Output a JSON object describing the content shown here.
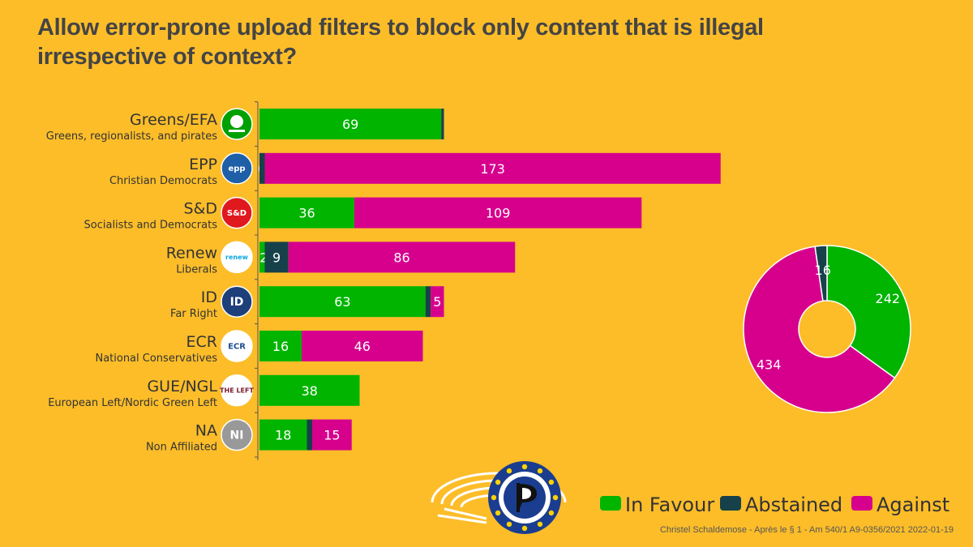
{
  "title": "Allow error-prone upload filters to block only content that is illegal irrespective of context?",
  "footer": "Christel Schaldemose - Après le § 1 - Am 540/1 A9-0356/2021 2022-01-19",
  "colors": {
    "background": "#fcbd29",
    "in_favour": "#00b400",
    "abstained": "#16414a",
    "against": "#d6008d"
  },
  "chart_data": [
    {
      "type": "bar",
      "orientation": "horizontal",
      "stacked": true,
      "categories": [
        {
          "name": "Greens/EFA",
          "sub": "Greens, regionalists, and pirates",
          "logo": "greens-efa-logo",
          "logo_text": ""
        },
        {
          "name": "EPP",
          "sub": "Christian Democrats",
          "logo": "epp-logo",
          "logo_text": "epp"
        },
        {
          "name": "S&D",
          "sub": "Socialists and Democrats",
          "logo": "sd-logo",
          "logo_text": "S&D"
        },
        {
          "name": "Renew",
          "sub": "Liberals",
          "logo": "renew-europe-logo",
          "logo_text": "renew"
        },
        {
          "name": "ID",
          "sub": "Far Right",
          "logo": "id-logo",
          "logo_text": "ID"
        },
        {
          "name": "ECR",
          "sub": "National Conservatives",
          "logo": "ecr-logo",
          "logo_text": "ECR"
        },
        {
          "name": "GUE/NGL",
          "sub": "European Left/Nordic Green Left",
          "logo": "the-left-logo",
          "logo_text": "THE LEFT"
        },
        {
          "name": "NA",
          "sub": "Non Affiliated",
          "logo": "ni-logo",
          "logo_text": "NI"
        }
      ],
      "series": [
        {
          "name": "In Favour",
          "color": "#00b400",
          "values": [
            69,
            0,
            36,
            2,
            63,
            16,
            38,
            18
          ]
        },
        {
          "name": "Abstained",
          "color": "#16414a",
          "values": [
            1,
            2,
            0,
            9,
            2,
            0,
            0,
            2
          ]
        },
        {
          "name": "Against",
          "color": "#d6008d",
          "values": [
            0,
            173,
            109,
            86,
            5,
            46,
            0,
            15
          ]
        }
      ],
      "labels_shown": [
        [
          "69",
          "",
          ""
        ],
        [
          "0",
          "",
          "173"
        ],
        [
          "36",
          "",
          "109"
        ],
        [
          "2",
          "9",
          "86"
        ],
        [
          "63",
          "",
          "5"
        ],
        [
          "16",
          "",
          "46"
        ],
        [
          "38",
          "",
          ""
        ],
        [
          "18",
          "",
          "15"
        ]
      ]
    },
    {
      "type": "pie",
      "donut": true,
      "slices": [
        {
          "name": "In Favour",
          "value": 242,
          "color": "#00b400"
        },
        {
          "name": "Against",
          "value": 434,
          "color": "#d6008d"
        },
        {
          "name": "Abstained",
          "value": 16,
          "color": "#16414a"
        }
      ]
    }
  ],
  "legend": {
    "position": "bottom-right",
    "items": [
      {
        "label": "In Favour",
        "color": "#00b400"
      },
      {
        "label": "Abstained",
        "color": "#16414a"
      },
      {
        "label": "Against",
        "color": "#d6008d"
      }
    ]
  },
  "logo": {
    "name": "european-parliament-pirate-logo"
  }
}
